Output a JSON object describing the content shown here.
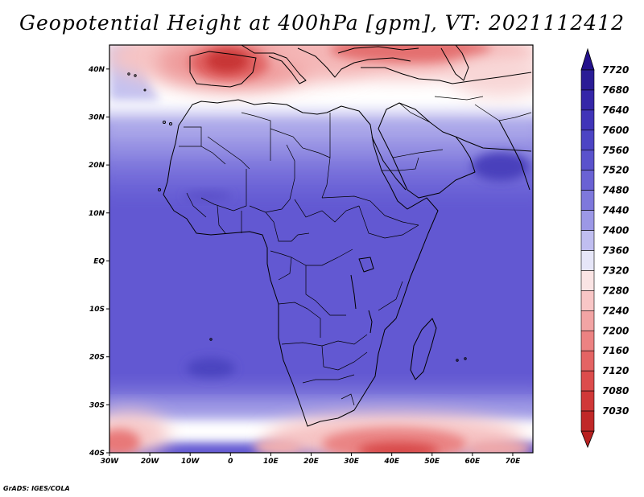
{
  "title": "Geopotential Height at 400hPa [gpm], VT: 2021112412",
  "credit": "GrADS: IGES/COLA",
  "map": {
    "lon_range": [
      -30,
      75
    ],
    "lat_range": [
      -40,
      45
    ],
    "lat_ticks": [
      {
        "value": 40,
        "label": "40N"
      },
      {
        "value": 30,
        "label": "30N"
      },
      {
        "value": 20,
        "label": "20N"
      },
      {
        "value": 10,
        "label": "10N"
      },
      {
        "value": 0,
        "label": "EQ"
      },
      {
        "value": -10,
        "label": "10S"
      },
      {
        "value": -20,
        "label": "20S"
      },
      {
        "value": -30,
        "label": "30S"
      },
      {
        "value": -40,
        "label": "40S"
      }
    ],
    "lon_ticks": [
      {
        "value": -30,
        "label": "30W"
      },
      {
        "value": -20,
        "label": "20W"
      },
      {
        "value": -10,
        "label": "10W"
      },
      {
        "value": 0,
        "label": "0"
      },
      {
        "value": 10,
        "label": "10E"
      },
      {
        "value": 20,
        "label": "20E"
      },
      {
        "value": 30,
        "label": "30E"
      },
      {
        "value": 40,
        "label": "40E"
      },
      {
        "value": 50,
        "label": "50E"
      },
      {
        "value": 60,
        "label": "60E"
      },
      {
        "value": 70,
        "label": "70E"
      }
    ]
  },
  "colorbar": {
    "levels": [
      {
        "label": "7720",
        "color": "#2a1c96"
      },
      {
        "label": "7680",
        "color": "#3526a8"
      },
      {
        "label": "7640",
        "color": "#4034b8"
      },
      {
        "label": "7600",
        "color": "#4c44c4"
      },
      {
        "label": "7560",
        "color": "#5a52cc"
      },
      {
        "label": "7520",
        "color": "#6a62d4"
      },
      {
        "label": "7480",
        "color": "#7e78dc"
      },
      {
        "label": "7440",
        "color": "#9c98e6"
      },
      {
        "label": "7400",
        "color": "#c0bef0"
      },
      {
        "label": "7360",
        "color": "#e6e6f8"
      },
      {
        "label": "7320",
        "color": "#fae4e4"
      },
      {
        "label": "7280",
        "color": "#f8c6c6"
      },
      {
        "label": "7240",
        "color": "#f2a4a4"
      },
      {
        "label": "7200",
        "color": "#ec8282"
      },
      {
        "label": "7160",
        "color": "#e46464"
      },
      {
        "label": "7120",
        "color": "#dc4c4c"
      },
      {
        "label": "7080",
        "color": "#d03838"
      },
      {
        "label": "7030",
        "color": "#c02828"
      }
    ],
    "top_arrow_color": "#24118c",
    "bottom_arrow_color": "#b82020"
  }
}
